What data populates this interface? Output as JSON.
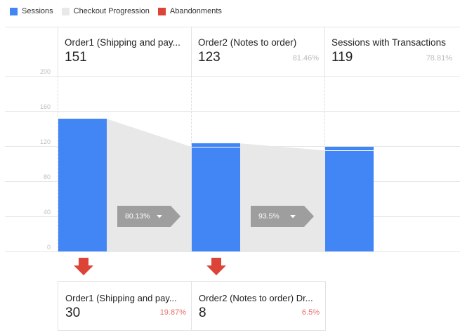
{
  "legend": [
    {
      "label": "Sessions",
      "color": "#4285f4"
    },
    {
      "label": "Checkout Progression",
      "color": "#e8e8e8"
    },
    {
      "label": "Abandonments",
      "color": "#db4437"
    }
  ],
  "chart_data": {
    "type": "bar",
    "categories": [
      "Order1 (Shipping and pay...",
      "Order2 (Notes to order)",
      "Sessions with Transactions"
    ],
    "series": [
      {
        "name": "Sessions",
        "values": [
          151,
          123,
          119
        ]
      }
    ],
    "ylim": [
      0,
      200
    ],
    "yticks": [
      0,
      40,
      80,
      120,
      160,
      200
    ],
    "ytick_labels": [
      "0",
      "40",
      "80",
      "120",
      "160",
      "200"
    ],
    "grid": true
  },
  "steps": [
    {
      "title": "Order1 (Shipping and pay...",
      "value": "151",
      "pct": ""
    },
    {
      "title": "Order2 (Notes to order)",
      "value": "123",
      "pct": "81.46%"
    },
    {
      "title": "Sessions with Transactions",
      "value": "119",
      "pct": "78.81%"
    }
  ],
  "conversions": [
    {
      "label": "80.13%",
      "icon": "caret-down-icon"
    },
    {
      "label": "93.5%",
      "icon": "caret-down-icon"
    }
  ],
  "abandonments": [
    {
      "title": "Order1 (Shipping and pay...",
      "value": "30",
      "pct": "19.87%"
    },
    {
      "title": "Order2 (Notes to order) Dr...",
      "value": "8",
      "pct": "6.5%"
    }
  ],
  "colors": {
    "sessions": "#4285f4",
    "progression": "#e8e8e8",
    "abandon": "#db4437",
    "conversion_badge": "#9e9e9e",
    "abandon_pct": "#e8716b"
  }
}
